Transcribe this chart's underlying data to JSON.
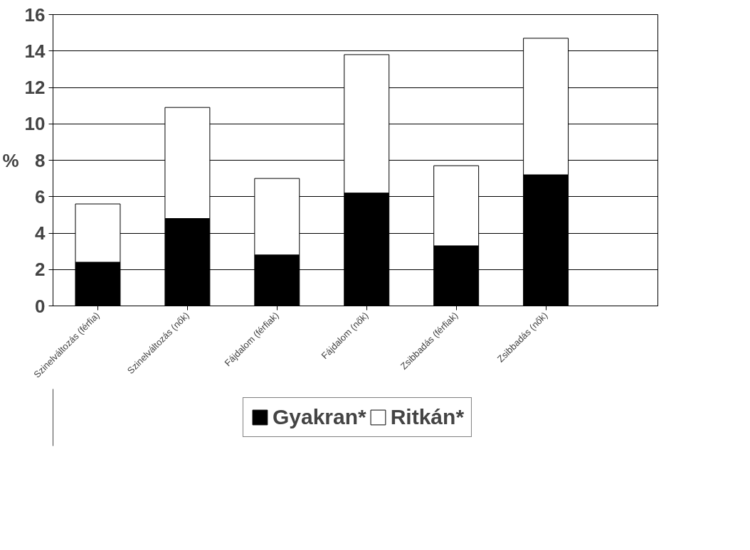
{
  "chart_data": {
    "type": "bar",
    "stacked": true,
    "ylabel": "%",
    "categories": [
      "Szinelváltozás (férfia)",
      "Szinelváltozás (nők)",
      "Fájdalom (férfiak)",
      "Fájdalom (nők)",
      "Zsibbadás (férfiak)",
      "Zsibbadás (nők)"
    ],
    "series": [
      {
        "name": "Gyakran*",
        "color": "#000000",
        "values": [
          2.4,
          4.8,
          2.8,
          6.2,
          3.3,
          7.2
        ]
      },
      {
        "name": "Ritkán*",
        "color": "#ffffff",
        "values": [
          3.2,
          6.1,
          4.2,
          7.6,
          4.4,
          7.5
        ]
      }
    ],
    "ylim": [
      0,
      16
    ],
    "yticks": [
      0,
      2,
      4,
      6,
      8,
      10,
      12,
      14,
      16
    ],
    "grid": "y",
    "legend": "bottom"
  }
}
